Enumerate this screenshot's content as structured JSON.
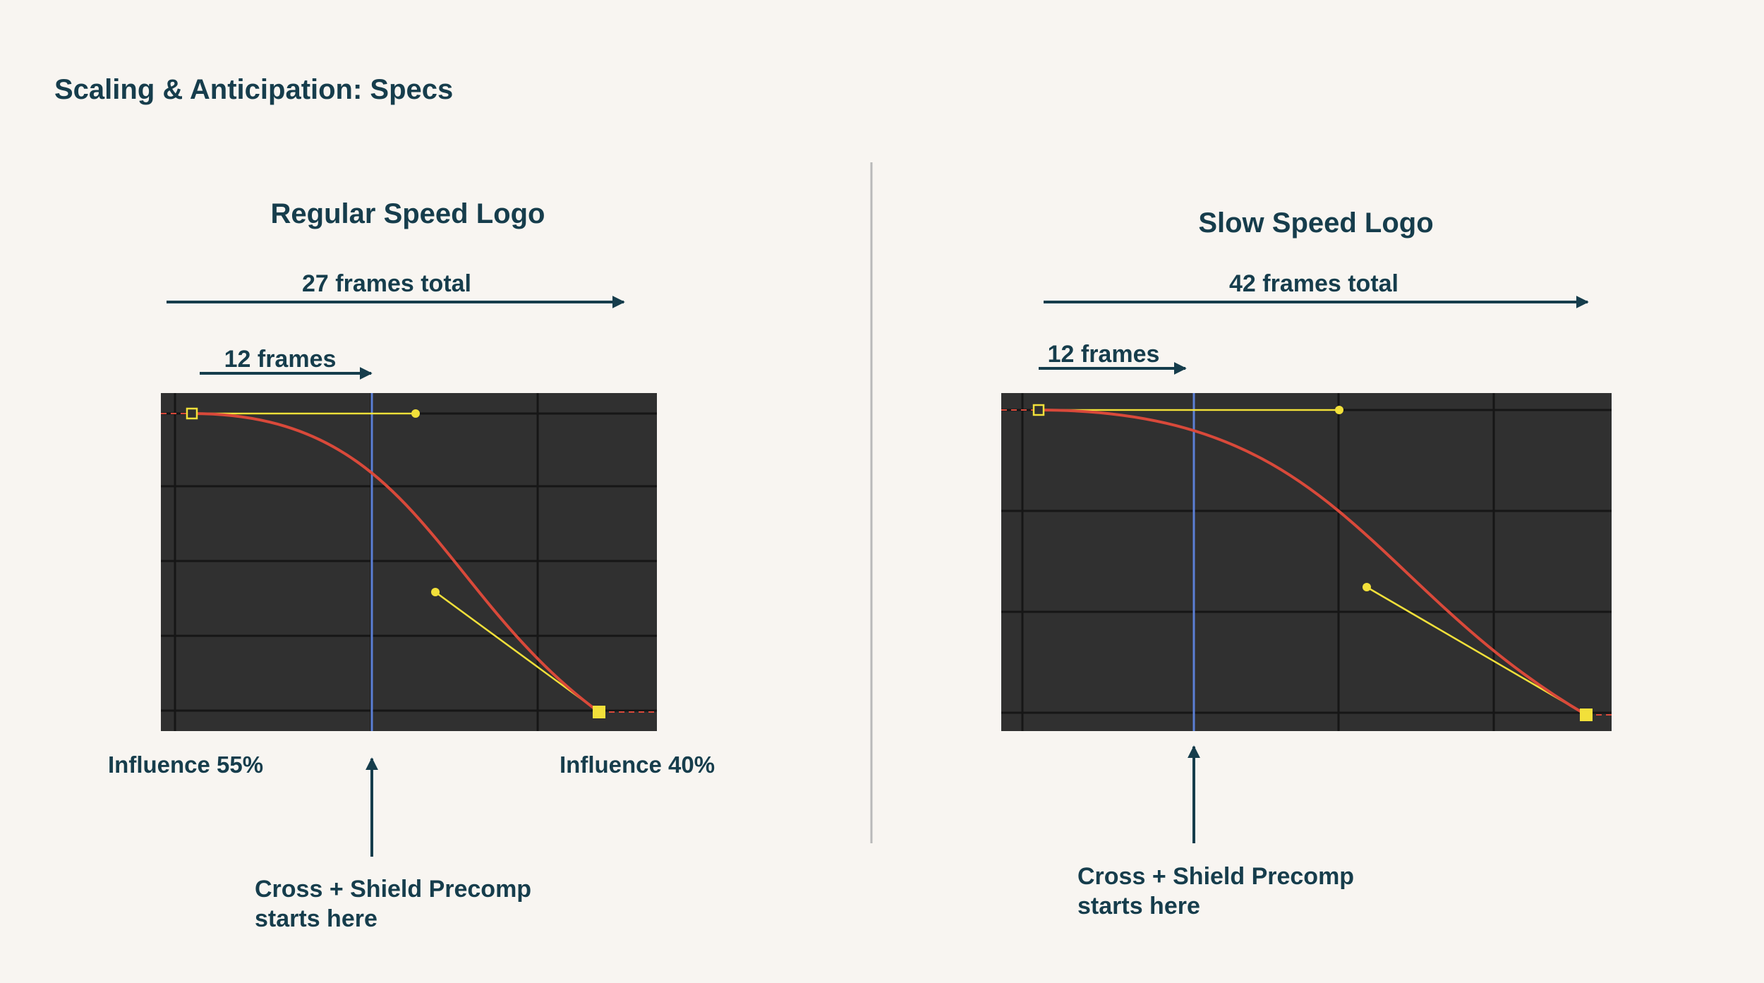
{
  "slide": {
    "title": "Scaling & Anticipation: Specs"
  },
  "colors": {
    "text": "#163d4c",
    "background": "#f8f5f1",
    "graph_background": "#303030",
    "curve": "#d9493a",
    "handle": "#f2e03a",
    "current_time": "#5b7fd6"
  },
  "panels": [
    {
      "title": "Regular Speed Logo",
      "total_label": "27 frames total",
      "anticipation_label": "12 frames",
      "influence_out": "Influence 55%",
      "influence_in": "Influence 40%",
      "callout_line1": "Cross + Shield Precomp",
      "callout_line2": "starts here"
    },
    {
      "title": "Slow Speed Logo",
      "total_label": "42 frames total",
      "anticipation_label": "12 frames",
      "callout_line1": "Cross + Shield Precomp",
      "callout_line2": "starts here"
    }
  ]
}
